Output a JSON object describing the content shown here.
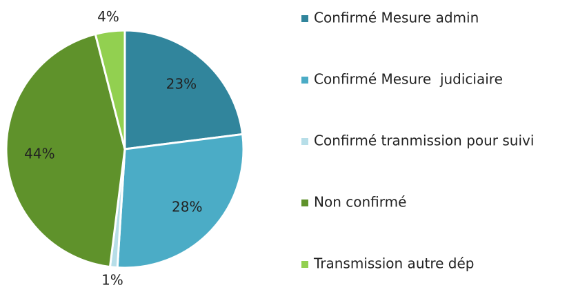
{
  "chart_data": {
    "type": "pie",
    "categories": [
      "Confirmé Mesure admin",
      "Confirmé Mesure  judiciaire",
      "Confirmé tranmission pour suivi",
      "Non confirmé",
      "Transmission autre dép"
    ],
    "values": [
      23,
      28,
      1,
      44,
      4
    ],
    "value_labels": [
      "23%",
      "28%",
      "1%",
      "44%",
      "4%"
    ],
    "colors": [
      "#31859c",
      "#4bacc6",
      "#b7dee8",
      "#5f922b",
      "#92d050"
    ],
    "legend": "right"
  }
}
